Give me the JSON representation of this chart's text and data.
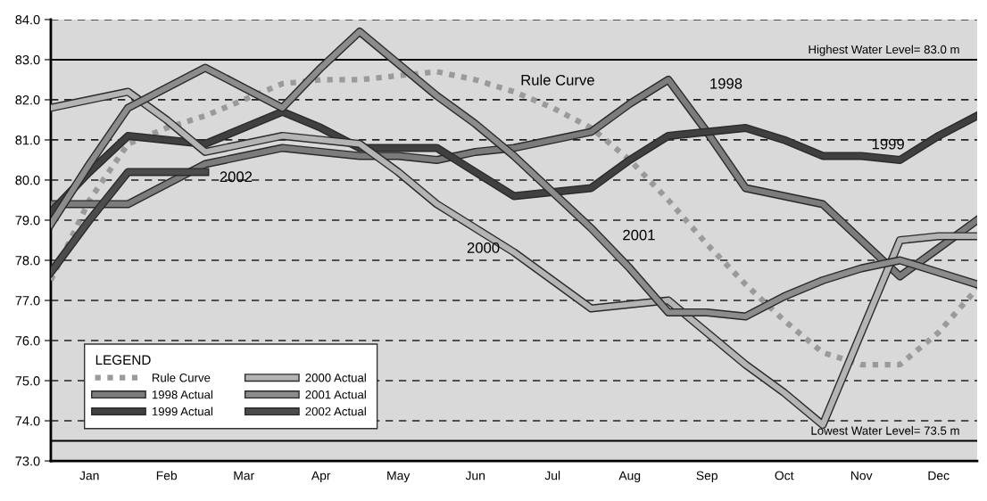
{
  "chart_data": {
    "type": "line",
    "categories": [
      null,
      "Jan",
      null,
      "Feb",
      null,
      "Mar",
      null,
      "Apr",
      null,
      "May",
      null,
      "Jun",
      null,
      "Jul",
      null,
      "Aug",
      null,
      "Sep",
      null,
      "Oct",
      null,
      "Nov",
      null,
      "Dec",
      null
    ],
    "ylim": [
      73,
      84
    ],
    "yticks": [
      {
        "value": 73,
        "label": "73.0"
      },
      {
        "value": 74,
        "label": "74.0"
      },
      {
        "value": 75,
        "label": "75.0"
      },
      {
        "value": 76,
        "label": "76.0"
      },
      {
        "value": 77,
        "label": "77.0"
      },
      {
        "value": 78,
        "label": "78.0"
      },
      {
        "value": 79,
        "label": "79.0"
      },
      {
        "value": 80,
        "label": "80.0"
      },
      {
        "value": 81,
        "label": "81.0"
      },
      {
        "value": 82,
        "label": "82.0"
      },
      {
        "value": 83,
        "label": "83.0"
      },
      {
        "value": 84,
        "label": "84.0"
      }
    ],
    "grid": "y",
    "legend": "bottom left",
    "legend_title": "LEGEND",
    "series": [
      {
        "name": "Rule Curve",
        "color": "#9a9a9a",
        "line_style": "dotted",
        "values": [
          77.5,
          79.5,
          80.9,
          81.3,
          81.6,
          82.0,
          82.4,
          82.5,
          82.5,
          82.6,
          82.7,
          82.5,
          82.2,
          81.8,
          81.3,
          80.5,
          79.5,
          78.4,
          77.4,
          76.5,
          75.7,
          75.4,
          75.4,
          76.2,
          77.3
        ]
      },
      {
        "name": "1998 Actual",
        "color": "#7c7c7c",
        "values": [
          79.4,
          79.4,
          79.4,
          79.9,
          80.4,
          80.6,
          80.8,
          80.7,
          80.6,
          80.6,
          80.5,
          80.7,
          80.8,
          81.0,
          81.2,
          81.9,
          82.5,
          81.2,
          79.8,
          79.6,
          79.4,
          78.5,
          77.6,
          78.3,
          79.0
        ]
      },
      {
        "name": "1999 Actual",
        "color": "#404040",
        "values": [
          79.2,
          80.2,
          81.1,
          81.0,
          80.9,
          81.3,
          81.7,
          81.3,
          80.8,
          80.8,
          80.8,
          80.2,
          79.6,
          79.7,
          79.8,
          80.5,
          81.1,
          81.2,
          81.3,
          81.0,
          80.6,
          80.6,
          80.5,
          81.1,
          81.6
        ]
      },
      {
        "name": "2000 Actual",
        "color": "#b4b4b4",
        "values": [
          81.8,
          82.0,
          82.2,
          81.5,
          80.7,
          80.9,
          81.1,
          81.0,
          80.9,
          80.2,
          79.4,
          78.8,
          78.2,
          77.5,
          76.8,
          76.9,
          77.0,
          76.2,
          75.4,
          74.7,
          73.9,
          76.2,
          78.5,
          78.6,
          78.6
        ]
      },
      {
        "name": "2001 Actual",
        "color": "#8c8c8c",
        "values": [
          78.9,
          80.4,
          81.8,
          82.3,
          82.8,
          82.3,
          81.8,
          82.8,
          83.7,
          82.9,
          82.1,
          81.4,
          80.6,
          79.7,
          78.8,
          77.8,
          76.7,
          76.7,
          76.6,
          77.1,
          77.5,
          77.8,
          78.0,
          77.7,
          77.4
        ]
      },
      {
        "name": "2002 Actual",
        "color": "#4c4c4c",
        "values": [
          77.7,
          79.0,
          80.2,
          80.2,
          80.2,
          null,
          null,
          null,
          null,
          null,
          null,
          null,
          null,
          null,
          null,
          null,
          null,
          null,
          null,
          null,
          null,
          null,
          null,
          null,
          null
        ]
      }
    ],
    "ref_lines": [
      {
        "axis": "y",
        "value": 83,
        "label": "Highest Water Level= 83.0 m",
        "color": "#000000"
      },
      {
        "axis": "y",
        "value": 73.5,
        "label": "Lowest Water Level= 73.5 m",
        "color": "#000000"
      }
    ],
    "annotations": [
      "Rule Curve",
      "1998",
      "1999",
      "2000",
      "2001",
      "2002"
    ]
  }
}
